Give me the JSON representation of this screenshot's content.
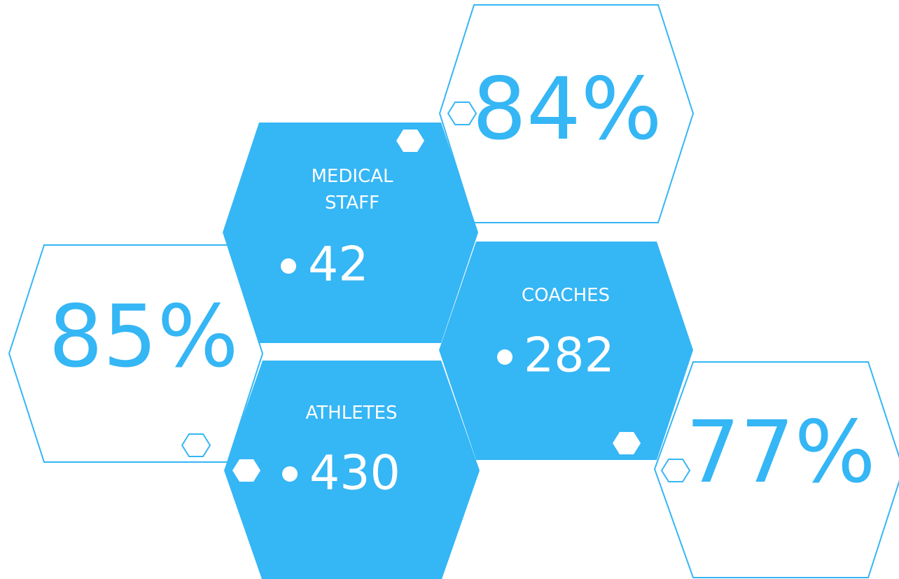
{
  "stats": [
    {
      "label_lines": [
        "MEDICAL",
        "STAFF"
      ],
      "value": "42"
    },
    {
      "label_lines": [
        "COACHES"
      ],
      "value": "282"
    },
    {
      "label_lines": [
        "ATHLETES"
      ],
      "value": "430"
    }
  ],
  "percents": [
    "84%",
    "85%",
    "77%"
  ]
}
